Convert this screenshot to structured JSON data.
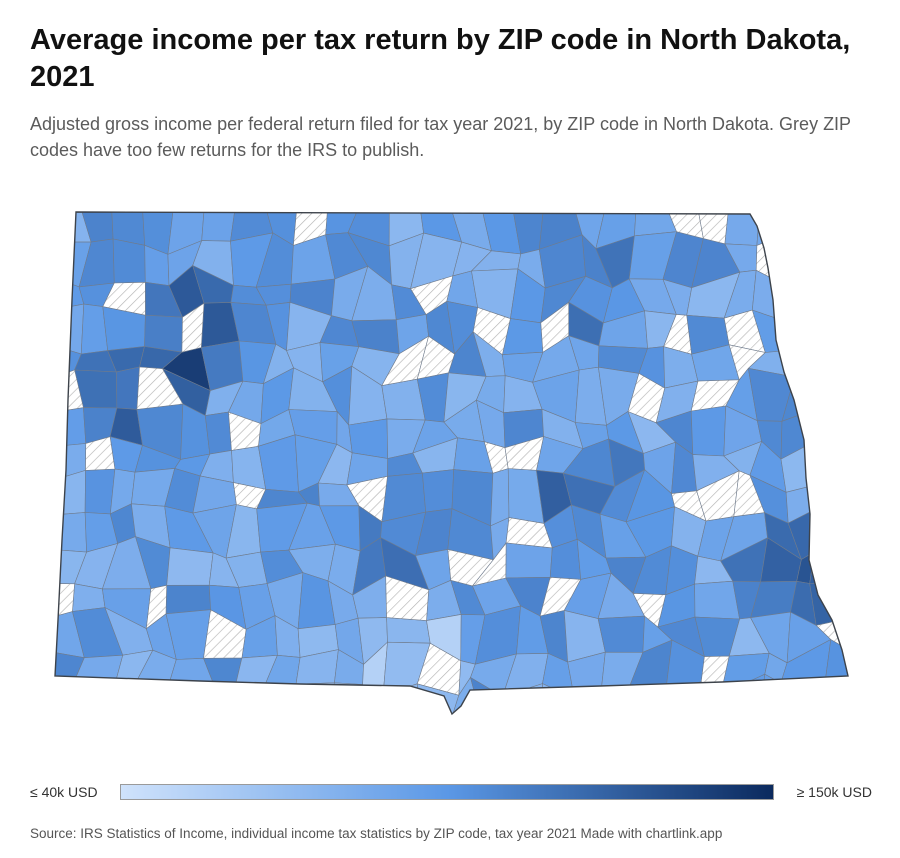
{
  "header": {
    "title": "Average income per tax return by ZIP code in North Dakota, 2021",
    "subtitle": "Adjusted gross income per federal return filed for tax year 2021, by ZIP code in North Dakota. Grey ZIP codes have too few returns for the IRS to publish."
  },
  "colors": {
    "low": "#cfe2fb",
    "mid": "#5b98e6",
    "high": "#0b2a5e",
    "no_data_fill": "#ffffff",
    "no_data_hatch": "#b5b5b5",
    "border": "#4a4f57"
  },
  "legend": {
    "min_label": "≤ 40k USD",
    "max_label": "≥ 150k USD",
    "min_value": 40,
    "max_value": 150,
    "unit": "k USD"
  },
  "footer": {
    "source": "Source: IRS Statistics of Income, individual income tax statistics by ZIP code, tax year 2021 Made with chartlink.app"
  }
}
